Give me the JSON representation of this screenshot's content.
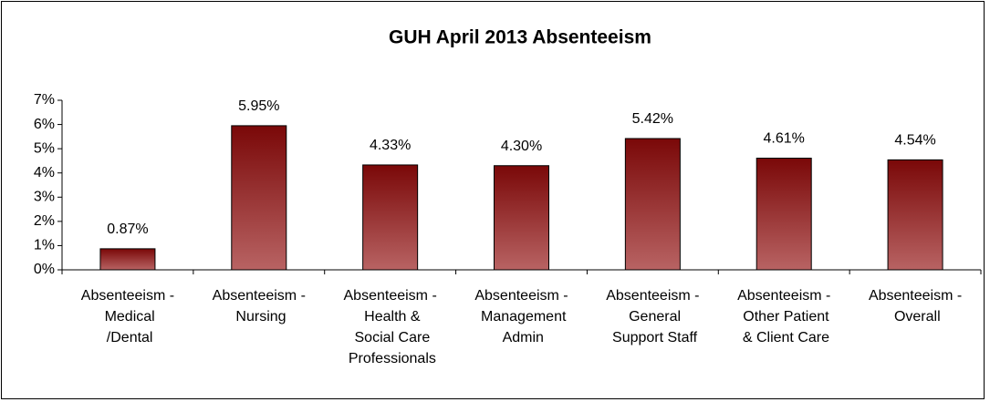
{
  "chart_data": {
    "type": "bar",
    "title": "GUH April 2013 Absenteeism",
    "categories": [
      "Absenteeism - Medical /Dental",
      "Absenteeism - Nursing",
      "Absenteeism - Health & Social Care Professionals",
      "Absenteeism - Management Admin",
      "Absenteeism - General Support Staff",
      "Absenteeism - Other Patient & Client Care",
      "Absenteeism - Overall"
    ],
    "values": [
      0.87,
      5.95,
      4.33,
      4.3,
      5.42,
      4.61,
      4.54
    ],
    "value_labels": [
      "0.87%",
      "5.95%",
      "4.33%",
      "4.30%",
      "5.42%",
      "4.61%",
      "4.54%"
    ],
    "color": "#8b1a1a",
    "ylim": [
      0,
      7
    ],
    "yticks": [
      {
        "value": 0,
        "label": "0%"
      },
      {
        "value": 1,
        "label": "1%"
      },
      {
        "value": 2,
        "label": "2%"
      },
      {
        "value": 3,
        "label": "3%"
      },
      {
        "value": 4,
        "label": "4%"
      },
      {
        "value": 5,
        "label": "5%"
      },
      {
        "value": 6,
        "label": "6%"
      },
      {
        "value": 7,
        "label": "7%"
      }
    ]
  }
}
